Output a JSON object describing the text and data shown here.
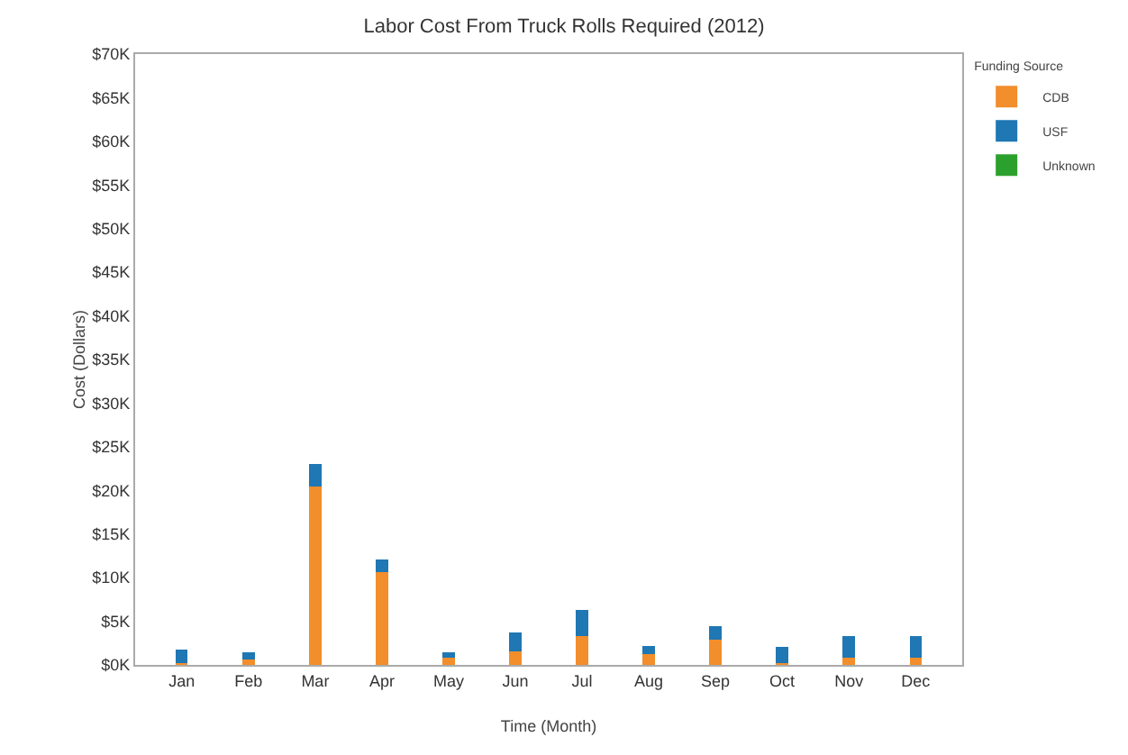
{
  "chart_data": {
    "type": "bar",
    "title": "Labor Cost From Truck Rolls Required (2012)",
    "xlabel": "Time (Month)",
    "ylabel": "Cost (Dollars)",
    "legend_title": "Funding Source",
    "categories": [
      "Jan",
      "Feb",
      "Mar",
      "Apr",
      "May",
      "Jun",
      "Jul",
      "Aug",
      "Sep",
      "Oct",
      "Nov",
      "Dec"
    ],
    "stacked": true,
    "series": [
      {
        "name": "CDB",
        "color": "#f28e2b",
        "values": [
          200,
          600,
          20400,
          10600,
          800,
          1500,
          3300,
          1200,
          2900,
          200,
          800,
          800
        ]
      },
      {
        "name": "USF",
        "color": "#1f77b4",
        "values": [
          1600,
          800,
          2600,
          1500,
          600,
          2200,
          3000,
          1000,
          1500,
          1900,
          2500,
          2500
        ]
      },
      {
        "name": "Unknown",
        "color": "#2ca02c",
        "values": [
          0,
          0,
          0,
          0,
          0,
          0,
          0,
          0,
          0,
          0,
          0,
          0
        ]
      }
    ],
    "ylim": [
      0,
      70000
    ],
    "yticks": [
      {
        "value": 0,
        "label": "$0K"
      },
      {
        "value": 5000,
        "label": "$5K"
      },
      {
        "value": 10000,
        "label": "$10K"
      },
      {
        "value": 15000,
        "label": "$15K"
      },
      {
        "value": 20000,
        "label": "$20K"
      },
      {
        "value": 25000,
        "label": "$25K"
      },
      {
        "value": 30000,
        "label": "$30K"
      },
      {
        "value": 35000,
        "label": "$35K"
      },
      {
        "value": 40000,
        "label": "$40K"
      },
      {
        "value": 45000,
        "label": "$45K"
      },
      {
        "value": 50000,
        "label": "$50K"
      },
      {
        "value": 55000,
        "label": "$55K"
      },
      {
        "value": 60000,
        "label": "$60K"
      },
      {
        "value": 65000,
        "label": "$65K"
      },
      {
        "value": 70000,
        "label": "$70K"
      }
    ],
    "grid": false,
    "legend": "top right"
  }
}
